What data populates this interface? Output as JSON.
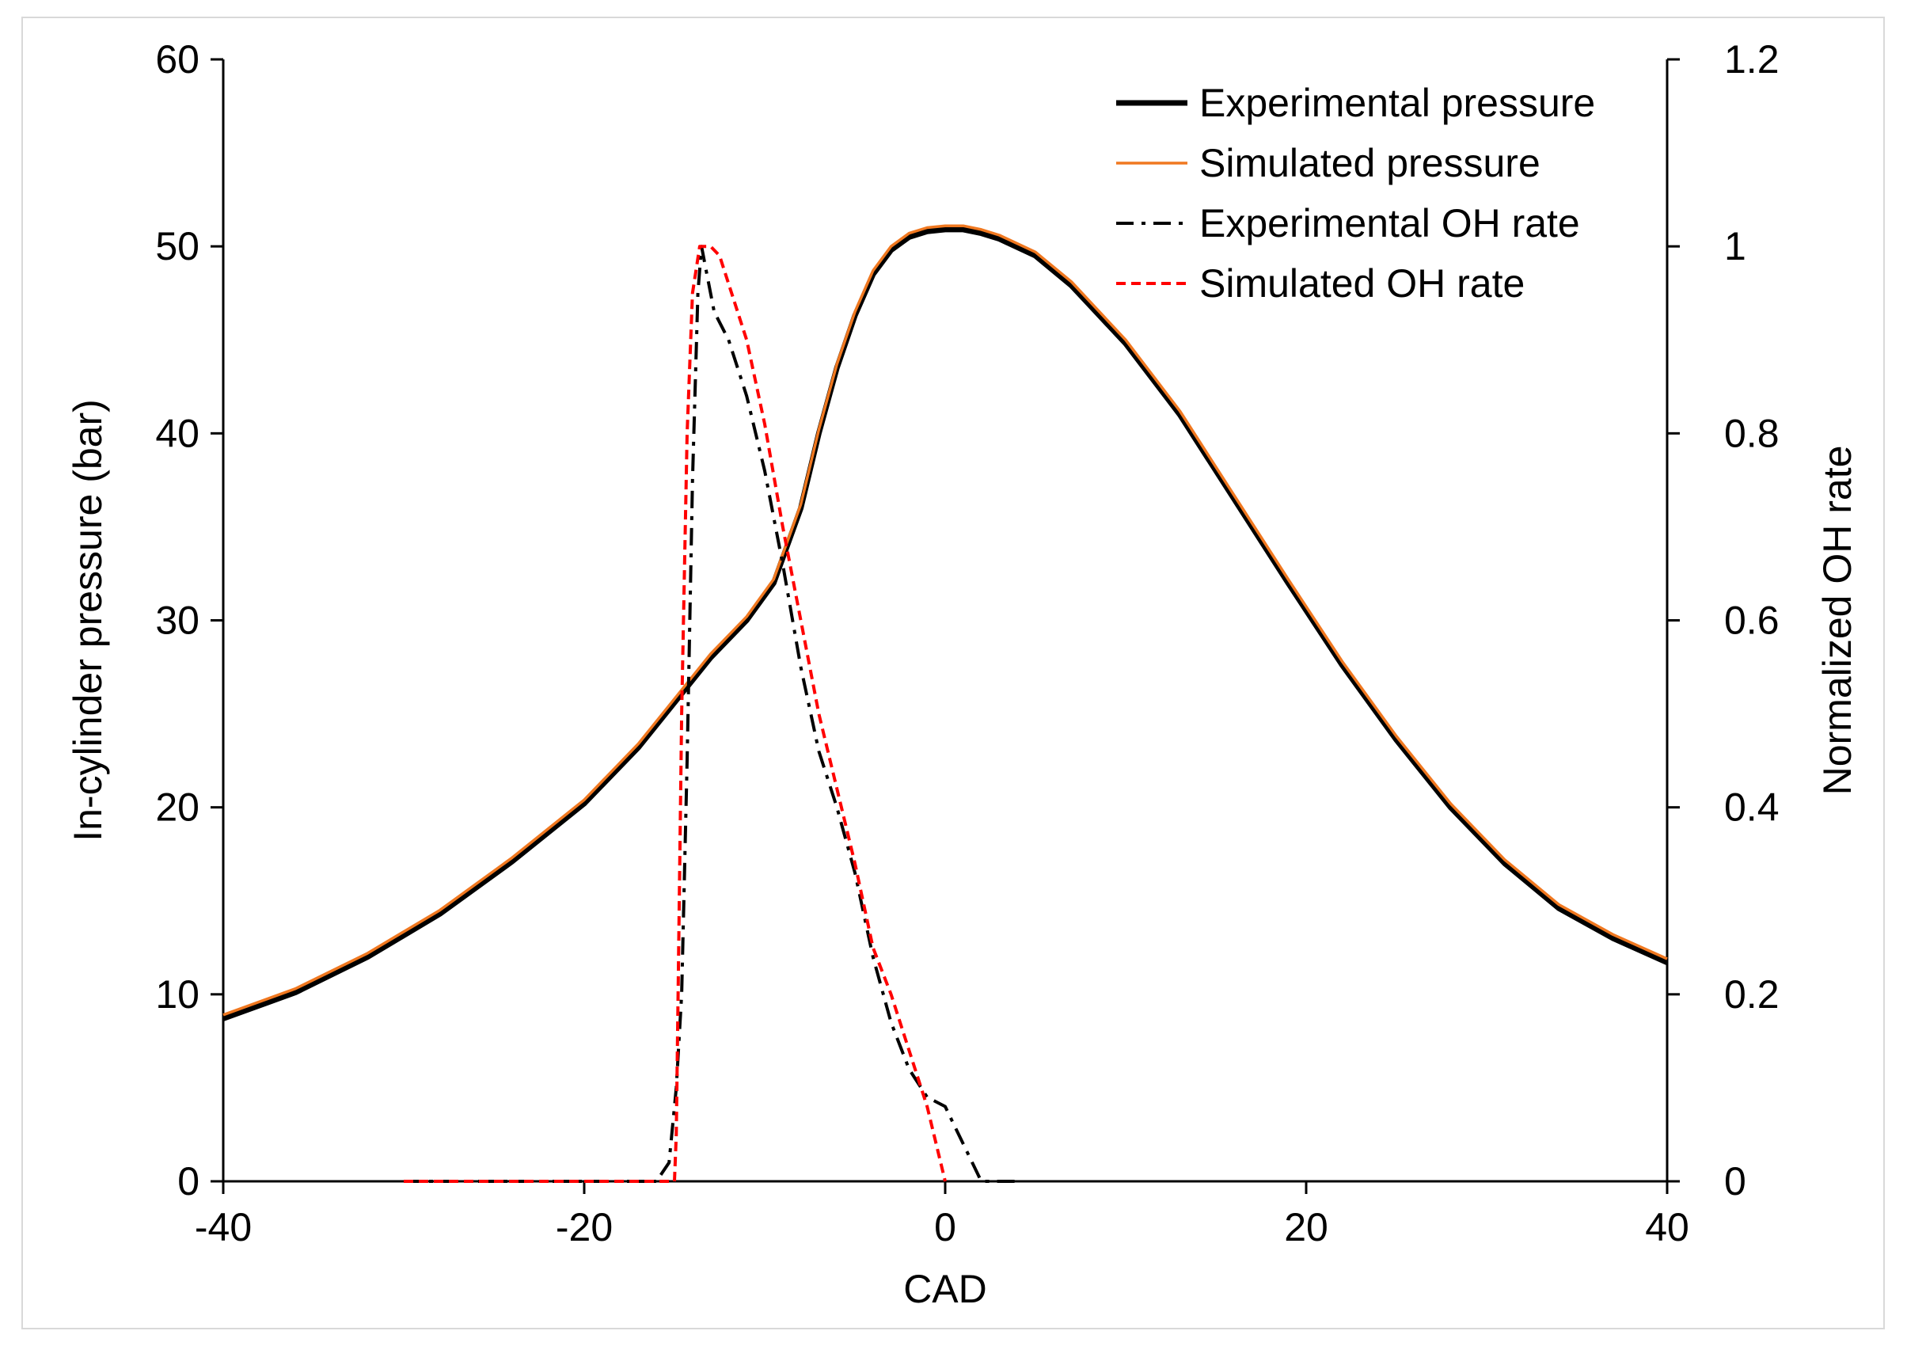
{
  "chart_data": {
    "type": "line",
    "title": "",
    "xlabel": "CAD",
    "ylabel": "In-cylinder pressure (bar)",
    "y2label": "Normalized OH rate",
    "xlim": [
      -40,
      40
    ],
    "ylim": [
      0,
      60
    ],
    "y2lim": [
      0,
      1.2
    ],
    "xticks": [
      -40,
      -20,
      0,
      20,
      40
    ],
    "yticks": [
      0,
      10,
      20,
      30,
      40,
      50,
      60
    ],
    "y2ticks": [
      0,
      0.2,
      0.4,
      0.6,
      0.8,
      1,
      1.2
    ],
    "xtick_labels": [
      "-40",
      "-20",
      "0",
      "20",
      "40"
    ],
    "ytick_labels": [
      "0",
      "10",
      "20",
      "30",
      "40",
      "50",
      "60"
    ],
    "y2tick_labels": [
      "0",
      "0.2",
      "0.4",
      "0.6",
      "0.8",
      "1",
      "1.2"
    ],
    "grid": false,
    "legend_position": "top-right",
    "series": [
      {
        "name": "Experimental pressure",
        "axis": "left",
        "color": "#000000",
        "style": "solid-thick",
        "points": [
          [
            -40,
            8.7
          ],
          [
            -36,
            10.1
          ],
          [
            -32,
            12.0
          ],
          [
            -28,
            14.3
          ],
          [
            -24,
            17.1
          ],
          [
            -20,
            20.2
          ],
          [
            -17,
            23.2
          ],
          [
            -15,
            25.6
          ],
          [
            -13,
            28.0
          ],
          [
            -11,
            30.0
          ],
          [
            -9.5,
            32.0
          ],
          [
            -8,
            36.0
          ],
          [
            -7,
            40.0
          ],
          [
            -6,
            43.5
          ],
          [
            -5,
            46.3
          ],
          [
            -4,
            48.5
          ],
          [
            -3,
            49.8
          ],
          [
            -2,
            50.5
          ],
          [
            -1,
            50.8
          ],
          [
            0,
            50.9
          ],
          [
            1,
            50.9
          ],
          [
            2,
            50.7
          ],
          [
            3,
            50.4
          ],
          [
            5,
            49.5
          ],
          [
            7,
            47.9
          ],
          [
            10,
            44.8
          ],
          [
            13,
            41.0
          ],
          [
            16,
            36.5
          ],
          [
            19,
            32.0
          ],
          [
            22,
            27.6
          ],
          [
            25,
            23.6
          ],
          [
            28,
            20.0
          ],
          [
            31,
            17.0
          ],
          [
            34,
            14.6
          ],
          [
            37,
            13.0
          ],
          [
            40,
            11.7
          ]
        ]
      },
      {
        "name": "Simulated pressure",
        "axis": "left",
        "color": "#f07820",
        "style": "solid",
        "points": [
          [
            -40,
            8.9
          ],
          [
            -36,
            10.3
          ],
          [
            -32,
            12.2
          ],
          [
            -28,
            14.5
          ],
          [
            -24,
            17.3
          ],
          [
            -20,
            20.4
          ],
          [
            -17,
            23.4
          ],
          [
            -15,
            25.8
          ],
          [
            -13,
            28.2
          ],
          [
            -11,
            30.2
          ],
          [
            -9.5,
            32.2
          ],
          [
            -8,
            36.2
          ],
          [
            -7,
            40.2
          ],
          [
            -6,
            43.7
          ],
          [
            -5,
            46.5
          ],
          [
            -4,
            48.7
          ],
          [
            -3,
            50.0
          ],
          [
            -2,
            50.7
          ],
          [
            -1,
            51.0
          ],
          [
            0,
            51.1
          ],
          [
            1,
            51.1
          ],
          [
            2,
            50.9
          ],
          [
            3,
            50.6
          ],
          [
            5,
            49.7
          ],
          [
            7,
            48.1
          ],
          [
            10,
            45.0
          ],
          [
            13,
            41.2
          ],
          [
            16,
            36.7
          ],
          [
            19,
            32.2
          ],
          [
            22,
            27.8
          ],
          [
            25,
            23.8
          ],
          [
            28,
            20.2
          ],
          [
            31,
            17.2
          ],
          [
            34,
            14.8
          ],
          [
            37,
            13.2
          ],
          [
            40,
            11.9
          ]
        ]
      },
      {
        "name": "Experimental OH rate",
        "axis": "right",
        "color": "#000000",
        "style": "dash-dot",
        "points": [
          [
            -30,
            0
          ],
          [
            -25,
            0
          ],
          [
            -20,
            0
          ],
          [
            -16,
            0
          ],
          [
            -15.3,
            0.02
          ],
          [
            -14.9,
            0.1
          ],
          [
            -14.6,
            0.2
          ],
          [
            -14.3,
            0.45
          ],
          [
            -14.0,
            0.75
          ],
          [
            -13.7,
            0.95
          ],
          [
            -13.5,
            1.0
          ],
          [
            -13.2,
            0.97
          ],
          [
            -12.8,
            0.93
          ],
          [
            -12,
            0.9
          ],
          [
            -11,
            0.84
          ],
          [
            -10,
            0.76
          ],
          [
            -9,
            0.66
          ],
          [
            -8,
            0.55
          ],
          [
            -7,
            0.46
          ],
          [
            -6,
            0.4
          ],
          [
            -5,
            0.33
          ],
          [
            -4,
            0.24
          ],
          [
            -3,
            0.17
          ],
          [
            -2,
            0.12
          ],
          [
            -1,
            0.09
          ],
          [
            0,
            0.08
          ],
          [
            0.5,
            0.06
          ],
          [
            1,
            0.04
          ],
          [
            1.5,
            0.02
          ],
          [
            2,
            0
          ],
          [
            3,
            0
          ],
          [
            4,
            0
          ]
        ]
      },
      {
        "name": "Simulated OH rate",
        "axis": "right",
        "color": "#ff0000",
        "style": "dashed",
        "points": [
          [
            -30,
            0
          ],
          [
            -25,
            0
          ],
          [
            -20,
            0
          ],
          [
            -16,
            0
          ],
          [
            -15,
            0
          ],
          [
            -14.9,
            0.05
          ],
          [
            -14.8,
            0.2
          ],
          [
            -14.6,
            0.5
          ],
          [
            -14.3,
            0.8
          ],
          [
            -14.0,
            0.95
          ],
          [
            -13.6,
            1.0
          ],
          [
            -13.0,
            1.0
          ],
          [
            -12.5,
            0.99
          ],
          [
            -12,
            0.96
          ],
          [
            -11,
            0.9
          ],
          [
            -10,
            0.81
          ],
          [
            -9,
            0.7
          ],
          [
            -8,
            0.6
          ],
          [
            -7,
            0.5
          ],
          [
            -6,
            0.42
          ],
          [
            -5,
            0.34
          ],
          [
            -4,
            0.25
          ],
          [
            -3,
            0.2
          ],
          [
            -2,
            0.14
          ],
          [
            -1,
            0.08
          ],
          [
            -0.5,
            0.04
          ],
          [
            0,
            0
          ]
        ]
      }
    ]
  }
}
